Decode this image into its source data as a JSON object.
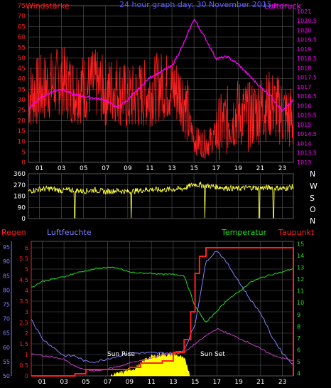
{
  "top_panel": {
    "title_left": "Windstärke",
    "title_center": "24 hour graph  day: 30 November 2015",
    "title_right": "Luftdruck",
    "left_axis_ticks": [
      "0",
      "5",
      "10",
      "15",
      "20",
      "25",
      "30",
      "35",
      "40",
      "45",
      "50",
      "55",
      "60",
      "65",
      "70",
      "75"
    ],
    "right_axis_ticks": [
      "1013",
      "1013.5",
      "1014",
      "1014.5",
      "1015",
      "1015.5",
      "1016",
      "1016.5",
      "1017",
      "1017.5",
      "1018",
      "1018.5",
      "1019",
      "1019.5",
      "1020",
      "1020.5",
      "1021"
    ],
    "x_ticks": [
      "01",
      "03",
      "05",
      "07",
      "09",
      "11",
      "13",
      "15",
      "17",
      "19",
      "21",
      "23"
    ]
  },
  "dir_panel": {
    "left_axis_ticks": [
      "0",
      "90",
      "180",
      "270",
      "360"
    ],
    "compass": [
      "N",
      "W",
      "S",
      "O",
      "N"
    ]
  },
  "bottom_panel": {
    "label_regen": "Regen",
    "label_luftfeuchte": "Luftfeuchte",
    "label_temperatur": "Temperatur",
    "label_taupunkt": "Taupunkt",
    "humidity_ticks": [
      "50",
      "55",
      "60",
      "65",
      "70",
      "75",
      "80",
      "85",
      "90",
      "95"
    ],
    "rain_ticks": [
      "0",
      "0.5",
      "1",
      "1.5",
      "2",
      "2.5",
      "3",
      "3.5",
      "4",
      "4.5",
      "5",
      "5.5",
      "6"
    ],
    "temp_ticks": [
      "4",
      "5",
      "6",
      "7",
      "8",
      "9",
      "10",
      "11",
      "12",
      "13",
      "14",
      "15"
    ],
    "sun_rise": "Sun Rise",
    "sun_set": "Sun Set",
    "x_ticks": [
      "01",
      "03",
      "05",
      "07",
      "09",
      "11",
      "13",
      "15",
      "17",
      "19",
      "21",
      "23"
    ]
  },
  "colors": {
    "wind": "#ff2020",
    "pressure": "#ff00ff",
    "direction": "#ffff40",
    "humidity": "#8080ff",
    "temperature": "#20e020",
    "dewpoint": "#c040c0",
    "rain": "#ff2020",
    "solar": "#ffff00",
    "grid": "#5a5a5a"
  },
  "chart_data": [
    {
      "type": "line",
      "title": "24 hour graph  day: 30 November 2015",
      "xlim": [
        0,
        24
      ],
      "series": [
        {
          "name": "Windstärke",
          "axis": "left",
          "ylim": [
            0,
            75
          ],
          "x": [
            0,
            1,
            2,
            3,
            4,
            5,
            6,
            7,
            8,
            9,
            10,
            11,
            12,
            13,
            14,
            15,
            16,
            17,
            18,
            19,
            20,
            21,
            22,
            23,
            24
          ],
          "values": [
            30,
            33,
            35,
            38,
            33,
            34,
            36,
            32,
            34,
            28,
            30,
            32,
            35,
            34,
            30,
            10,
            8,
            12,
            18,
            22,
            20,
            24,
            26,
            22,
            18
          ]
        },
        {
          "name": "Luftdruck",
          "axis": "right",
          "ylim": [
            1013,
            1021.3
          ],
          "x": [
            0,
            1,
            2,
            3,
            4,
            5,
            6,
            7,
            8,
            9,
            10,
            11,
            12,
            13,
            14,
            15,
            16,
            17,
            18,
            19,
            20,
            21,
            22,
            23,
            24
          ],
          "values": [
            1015.8,
            1016.4,
            1016.7,
            1016.9,
            1016.6,
            1016.5,
            1016.4,
            1016.3,
            1015.9,
            1016.3,
            1016.9,
            1017.5,
            1017.8,
            1018.1,
            1019.2,
            1020.6,
            1019.6,
            1018.5,
            1018.6,
            1018.2,
            1017.6,
            1017.0,
            1016.5,
            1015.7,
            1016.3
          ]
        }
      ]
    },
    {
      "type": "line",
      "title": "",
      "xlim": [
        0,
        24
      ],
      "ylim": [
        0,
        360
      ],
      "series": [
        {
          "name": "",
          "x": [
            0,
            1,
            2,
            3,
            4,
            5,
            6,
            7,
            8,
            9,
            10,
            11,
            12,
            13,
            14,
            15,
            16,
            17,
            18,
            19,
            20,
            21,
            22,
            23,
            24
          ],
          "values": [
            220,
            235,
            240,
            225,
            230,
            220,
            230,
            215,
            225,
            215,
            225,
            235,
            230,
            235,
            240,
            275,
            265,
            255,
            245,
            240,
            250,
            245,
            250,
            240,
            255
          ]
        }
      ]
    },
    {
      "type": "line",
      "title": "",
      "xlim": [
        0,
        24
      ],
      "series": [
        {
          "name": "Luftfeuchte",
          "axis": "humidity",
          "ylim": [
            50,
            97
          ],
          "x": [
            0,
            1,
            2,
            3,
            4,
            5,
            6,
            7,
            8,
            9,
            10,
            11,
            12,
            13,
            14,
            15,
            16,
            17,
            18,
            19,
            20,
            21,
            22,
            23,
            24
          ],
          "values": [
            70,
            63,
            60,
            57,
            57,
            55,
            55,
            56,
            57,
            58,
            58,
            58,
            58,
            58,
            59,
            68,
            90,
            94,
            89,
            83,
            77,
            72,
            64,
            58,
            54
          ]
        },
        {
          "name": "Temperatur",
          "axis": "temp",
          "ylim": [
            3.8,
            15.2
          ],
          "x": [
            0,
            1,
            2,
            3,
            4,
            5,
            6,
            7,
            8,
            9,
            10,
            11,
            12,
            13,
            14,
            15,
            16,
            17,
            18,
            19,
            20,
            21,
            22,
            23,
            24
          ],
          "values": [
            11.3,
            11.8,
            12.0,
            12.2,
            12.5,
            12.7,
            12.9,
            13.0,
            12.9,
            12.6,
            12.5,
            12.5,
            12.4,
            12.4,
            12.3,
            9.7,
            8.3,
            9.3,
            10.3,
            10.9,
            11.7,
            12.1,
            12.4,
            12.6,
            12.9
          ]
        },
        {
          "name": "Taupunkt",
          "axis": "temp",
          "ylim": [
            3.8,
            15.2
          ],
          "x": [
            0,
            1,
            2,
            3,
            4,
            5,
            6,
            7,
            8,
            9,
            10,
            11,
            12,
            13,
            14,
            15,
            16,
            17,
            18,
            19,
            20,
            21,
            22,
            23,
            24
          ],
          "values": [
            5.7,
            5.5,
            5.4,
            5.2,
            4.6,
            4.3,
            4.2,
            4.4,
            4.6,
            4.9,
            5.1,
            5.3,
            5.6,
            5.7,
            5.8,
            6.5,
            7.2,
            7.8,
            7.4,
            7.0,
            6.6,
            6.1,
            5.6,
            5.3,
            5.1
          ]
        },
        {
          "name": "Regen",
          "axis": "rain",
          "ylim": [
            0,
            6.3
          ],
          "x": [
            0,
            1,
            2,
            3,
            4,
            5,
            6,
            7,
            8,
            9,
            10,
            11,
            12,
            13,
            14,
            14.6,
            15,
            15.4,
            16,
            16.5,
            17,
            18,
            19,
            20,
            21,
            22,
            23,
            23.8,
            24
          ],
          "values": [
            0,
            0,
            0,
            0,
            0.1,
            0.3,
            0.3,
            0.3,
            0.3,
            0.4,
            0.6,
            0.6,
            0.7,
            1.1,
            1.7,
            3.0,
            4.8,
            5.6,
            6.0,
            6.0,
            6.0,
            6.0,
            6.0,
            6.0,
            6.0,
            6.0,
            6.0,
            6.0,
            0
          ]
        },
        {
          "name": "Solar",
          "axis": "none",
          "ylim": [
            0,
            100
          ],
          "x": [
            7.3,
            8,
            8.5,
            9,
            9.5,
            10,
            10.5,
            11,
            11.5,
            12,
            12.5,
            13,
            13.5,
            14,
            14.3,
            14.5
          ],
          "values": [
            0,
            8,
            14,
            22,
            28,
            40,
            62,
            70,
            74,
            80,
            78,
            76,
            74,
            60,
            38,
            0
          ]
        }
      ]
    }
  ]
}
